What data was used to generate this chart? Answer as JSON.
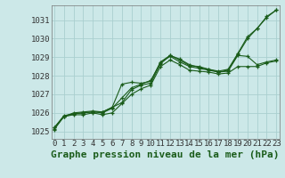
{
  "xlabel": "Graphe pression niveau de la mer (hPa)",
  "bg_color": "#cce8e8",
  "grid_color": "#aacfcf",
  "line_color": "#1a5c1a",
  "x_ticks": [
    0,
    1,
    2,
    3,
    4,
    5,
    6,
    7,
    8,
    9,
    10,
    11,
    12,
    13,
    14,
    15,
    16,
    17,
    18,
    19,
    20,
    21,
    22,
    23
  ],
  "ylim": [
    1024.6,
    1031.8
  ],
  "xlim": [
    -0.3,
    23.3
  ],
  "series": [
    [
      1025.1,
      1025.8,
      1025.9,
      1025.9,
      1026.0,
      1025.9,
      1026.0,
      1026.5,
      1027.0,
      1027.3,
      1027.5,
      1028.5,
      1028.85,
      1028.6,
      1028.3,
      1028.25,
      1028.2,
      1028.1,
      1028.15,
      1028.5,
      1028.5,
      1028.5,
      1028.7,
      1028.8
    ],
    [
      1025.15,
      1025.8,
      1025.95,
      1026.0,
      1026.05,
      1026.0,
      1026.25,
      1026.8,
      1027.35,
      1027.55,
      1027.75,
      1028.7,
      1029.05,
      1028.75,
      1028.5,
      1028.4,
      1028.3,
      1028.2,
      1028.25,
      1029.1,
      1029.05,
      1028.6,
      1028.75,
      1028.85
    ],
    [
      1025.2,
      1025.8,
      1026.0,
      1026.05,
      1026.1,
      1026.05,
      1026.3,
      1027.55,
      1027.65,
      1027.6,
      1027.7,
      1028.75,
      1029.1,
      1028.85,
      1028.55,
      1028.5,
      1028.35,
      1028.25,
      1028.35,
      1029.2,
      1030.1,
      1030.55,
      1031.2,
      1031.55
    ],
    [
      1025.2,
      1025.85,
      1025.95,
      1026.0,
      1026.05,
      1026.05,
      1026.3,
      1026.55,
      1027.25,
      1027.5,
      1027.6,
      1028.65,
      1029.1,
      1028.9,
      1028.6,
      1028.45,
      1028.35,
      1028.2,
      1028.3,
      1029.15,
      1030.0,
      1030.55,
      1031.15,
      1031.55
    ]
  ],
  "xlabel_fontsize": 8,
  "tick_fontsize": 6.5
}
